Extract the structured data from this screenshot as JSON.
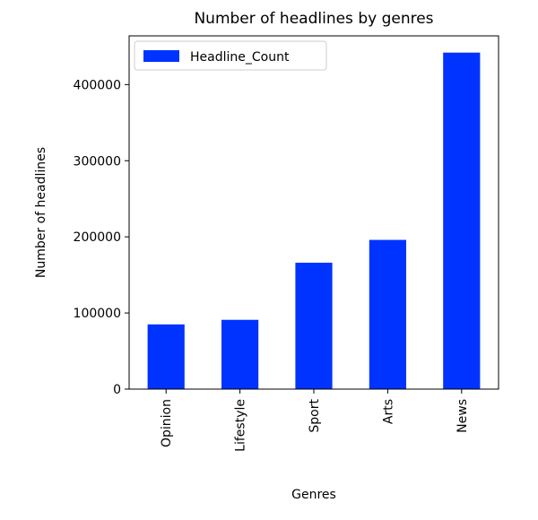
{
  "chart_data": {
    "type": "bar",
    "title": "Number of headlines by genres",
    "xlabel": "Genres",
    "ylabel": "Number of headlines",
    "categories": [
      "Opinion",
      "Lifestyle",
      "Sport",
      "Arts",
      "News"
    ],
    "series": [
      {
        "name": "Headline_Count",
        "color": "#0033ff",
        "values": [
          85000,
          91000,
          166000,
          196000,
          442000
        ]
      }
    ],
    "ylim": [
      0,
      464000
    ],
    "yticks": [
      0,
      100000,
      200000,
      300000,
      400000
    ],
    "ytick_labels": [
      "0",
      "100000",
      "200000",
      "300000",
      "400000"
    ],
    "grid": false,
    "legend_position": "top-left"
  }
}
